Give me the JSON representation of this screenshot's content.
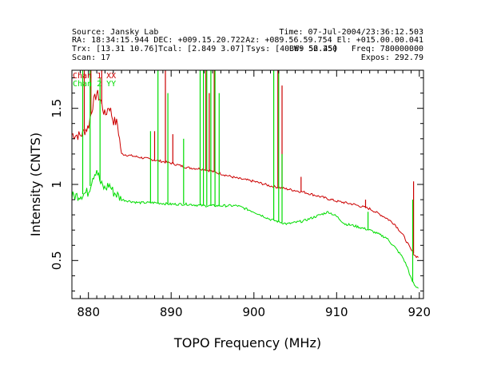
{
  "header": {
    "line1_left": "Source: Jansky Lab",
    "line1_right": "Time: 07-Jul-2004/23:36:12.503",
    "line2_left": "RA: 18:34:15.944 DEC: +009.15.20.722",
    "line2_right": "Az: +089.56.59.754 El: +015.00.00.041",
    "line3_trx": "Trx: [13.31 10.76]",
    "line3_tcal": "Tcal: [2.849 3.07]",
    "line3_tsys": "Tsys: [40.69 52.45]",
    "line3_bw": "BW: 56.250",
    "line3_freq": "Freq: 780000000",
    "line4_left": "Scan: 17",
    "line4_right": "Expos: 292.79"
  },
  "chart_data": {
    "type": "line",
    "xlabel": "TOPO Frequency (MHz)",
    "ylabel": "Intensity (CNTS)",
    "xlim": [
      878,
      920.5
    ],
    "ylim": [
      0.25,
      1.75
    ],
    "x_ticks": [
      880,
      890,
      900,
      910,
      920
    ],
    "y_ticks": [
      0.5,
      1,
      1.5
    ],
    "x_tick_labels": [
      "880",
      "890",
      "900",
      "910",
      "920"
    ],
    "y_tick_labels": [
      "0.5",
      "1",
      "1.5"
    ],
    "grid": false,
    "legend_position": "top-left",
    "series": [
      {
        "name": "Chan 1 XX",
        "color": "#cc0000",
        "x": [
          878,
          879,
          880,
          880.5,
          881,
          881.5,
          882,
          882.5,
          883,
          883.5,
          884,
          886,
          888,
          890,
          892,
          894,
          896,
          898,
          900,
          902,
          904,
          906,
          908,
          910,
          912,
          914,
          916,
          917,
          918,
          918.6,
          919,
          919.5,
          920
        ],
        "y": [
          1.33,
          1.32,
          1.38,
          1.52,
          1.6,
          1.55,
          1.45,
          1.52,
          1.42,
          1.4,
          1.2,
          1.18,
          1.16,
          1.14,
          1.11,
          1.1,
          1.07,
          1.04,
          1.02,
          0.99,
          0.97,
          0.95,
          0.92,
          0.89,
          0.87,
          0.84,
          0.78,
          0.74,
          0.67,
          0.61,
          0.57,
          0.53,
          0.52
        ],
        "spikes": [
          {
            "x": 879.5,
            "peak": 1.75
          },
          {
            "x": 880.3,
            "peak": 1.75
          },
          {
            "x": 881.6,
            "peak": 1.75
          },
          {
            "x": 888.0,
            "peak": 1.35
          },
          {
            "x": 889.3,
            "peak": 1.75
          },
          {
            "x": 890.2,
            "peak": 1.33
          },
          {
            "x": 894.2,
            "peak": 1.75
          },
          {
            "x": 894.6,
            "peak": 1.6
          },
          {
            "x": 895.2,
            "peak": 1.75
          },
          {
            "x": 902.9,
            "peak": 1.75
          },
          {
            "x": 903.4,
            "peak": 1.65
          },
          {
            "x": 905.7,
            "peak": 1.05
          },
          {
            "x": 913.5,
            "peak": 0.9
          },
          {
            "x": 919.3,
            "peak": 1.02
          }
        ]
      },
      {
        "name": "Chan 2 YY",
        "color": "#00dd00",
        "x": [
          878,
          879,
          880,
          880.5,
          881,
          881.5,
          882,
          882.5,
          883,
          883.5,
          884,
          886,
          888,
          890,
          892,
          894,
          896,
          898,
          900,
          902,
          904,
          906,
          908,
          909,
          910,
          911,
          912,
          914,
          916,
          917,
          918,
          918.6,
          919,
          919.5,
          920
        ],
        "y": [
          0.92,
          0.93,
          0.95,
          1.05,
          1.1,
          1.0,
          0.97,
          1.0,
          0.95,
          0.93,
          0.9,
          0.88,
          0.88,
          0.87,
          0.87,
          0.86,
          0.86,
          0.86,
          0.82,
          0.77,
          0.74,
          0.76,
          0.8,
          0.82,
          0.79,
          0.74,
          0.73,
          0.7,
          0.65,
          0.59,
          0.52,
          0.45,
          0.38,
          0.33,
          0.32
        ],
        "spikes": [
          {
            "x": 879.3,
            "peak": 1.75
          },
          {
            "x": 880.2,
            "peak": 1.75
          },
          {
            "x": 881.4,
            "peak": 1.7
          },
          {
            "x": 887.5,
            "peak": 1.35
          },
          {
            "x": 888.4,
            "peak": 1.75
          },
          {
            "x": 889.6,
            "peak": 1.6
          },
          {
            "x": 891.5,
            "peak": 1.3
          },
          {
            "x": 893.5,
            "peak": 1.75
          },
          {
            "x": 893.9,
            "peak": 1.75
          },
          {
            "x": 894.3,
            "peak": 1.75
          },
          {
            "x": 894.8,
            "peak": 1.75
          },
          {
            "x": 895.3,
            "peak": 1.75
          },
          {
            "x": 895.8,
            "peak": 1.6
          },
          {
            "x": 902.4,
            "peak": 1.75
          },
          {
            "x": 903.0,
            "peak": 1.75
          },
          {
            "x": 903.4,
            "peak": 1.2
          },
          {
            "x": 913.8,
            "peak": 0.82
          },
          {
            "x": 919.2,
            "peak": 0.9
          }
        ]
      }
    ]
  }
}
